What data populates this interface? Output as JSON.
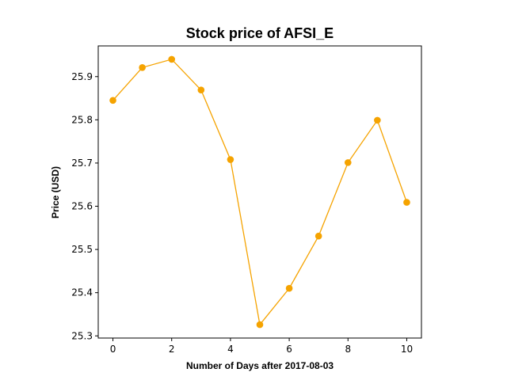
{
  "chart_data": {
    "type": "line",
    "title": "Stock price of AFSI_E",
    "xlabel": "Number of Days after 2017-08-03",
    "ylabel": "Price (USD)",
    "x": [
      0,
      1,
      2,
      3,
      4,
      5,
      6,
      7,
      8,
      9,
      10
    ],
    "series": [
      {
        "values": [
          25.845,
          25.921,
          25.94,
          25.869,
          25.708,
          25.326,
          25.41,
          25.531,
          25.701,
          25.799,
          25.609
        ],
        "color": "#f5a300",
        "marker": "circle"
      }
    ],
    "xlim": [
      -0.5,
      10.5
    ],
    "ylim": [
      25.295,
      25.971
    ],
    "xticks": [
      0,
      2,
      4,
      6,
      8,
      10
    ],
    "xtick_labels": [
      "0",
      "2",
      "4",
      "6",
      "8",
      "10"
    ],
    "yticks": [
      25.3,
      25.4,
      25.5,
      25.6,
      25.7,
      25.8,
      25.9
    ],
    "ytick_labels": [
      "25.3",
      "25.4",
      "25.5",
      "25.6",
      "25.7",
      "25.8",
      "25.9"
    ],
    "grid": false,
    "legend": "none"
  }
}
